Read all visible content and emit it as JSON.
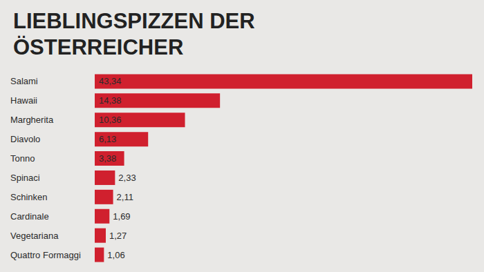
{
  "chart_data": {
    "type": "bar",
    "title": "LIEBLINGSPIZZEN DER ÖSTERREICHER",
    "orientation": "horizontal",
    "categories": [
      "Salami",
      "Hawaii",
      "Margherita",
      "Diavolo",
      "Tonno",
      "Spinaci",
      "Schinken",
      "Cardinale",
      "Vegetariana",
      "Quattro Formaggi"
    ],
    "values": [
      43.34,
      14.38,
      10.36,
      6.13,
      3.38,
      2.33,
      2.11,
      1.69,
      1.27,
      1.06
    ],
    "value_labels": [
      "43,34",
      "14,38",
      "10,36",
      "6,13",
      "3,38",
      "2,33",
      "2,11",
      "1,69",
      "1,27",
      "1,06"
    ],
    "color": "#d0202e",
    "xlim": [
      0,
      43.34
    ],
    "data_labels": true,
    "tick_labels": "y",
    "grid": false
  }
}
